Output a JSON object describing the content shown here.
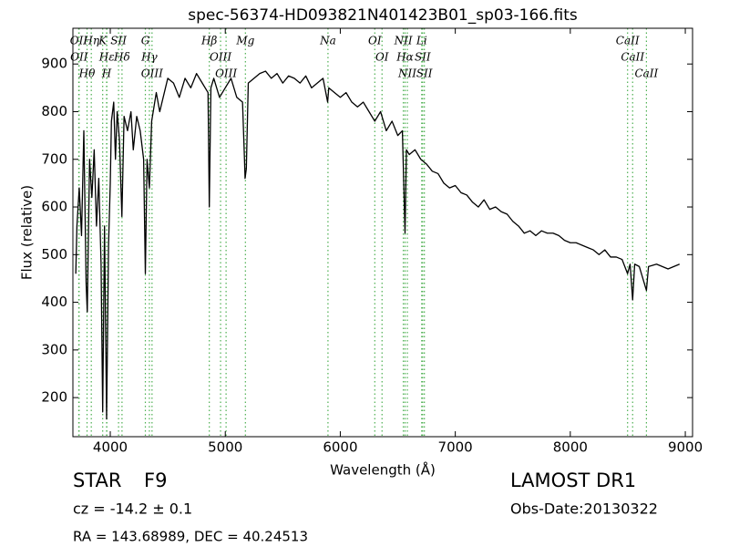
{
  "chart_data": {
    "type": "line",
    "title": "spec-56374-HD093821N401423B01_sp03-166.fits",
    "x_label": "Wavelength (Å)",
    "y_label": "Flux (relative)",
    "color": "#000000",
    "xlim": [
      3675,
      9063
    ],
    "ylim": [
      118,
      975
    ],
    "xticks": [
      4000,
      5000,
      6000,
      7000,
      8000,
      9000
    ],
    "yticks": [
      200,
      300,
      400,
      500,
      600,
      700,
      800,
      900
    ],
    "line_color": "#4caf50",
    "x": [
      3700,
      3710,
      3730,
      3750,
      3770,
      3790,
      3800,
      3820,
      3840,
      3860,
      3880,
      3900,
      3920,
      3934,
      3950,
      3968,
      3985,
      4000,
      4010,
      4030,
      4045,
      4060,
      4080,
      4101,
      4120,
      4150,
      4180,
      4200,
      4230,
      4260,
      4290,
      4305,
      4320,
      4340,
      4360,
      4400,
      4430,
      4470,
      4500,
      4550,
      4600,
      4650,
      4700,
      4750,
      4800,
      4850,
      4861,
      4875,
      4900,
      4950,
      5000,
      5050,
      5100,
      5150,
      5167,
      5172,
      5183,
      5200,
      5250,
      5300,
      5350,
      5400,
      5450,
      5500,
      5550,
      5600,
      5650,
      5700,
      5750,
      5800,
      5850,
      5890,
      5900,
      5950,
      6000,
      6050,
      6100,
      6150,
      6200,
      6250,
      6300,
      6350,
      6400,
      6450,
      6500,
      6540,
      6563,
      6575,
      6600,
      6650,
      6700,
      6750,
      6800,
      6850,
      6900,
      6950,
      7000,
      7050,
      7100,
      7150,
      7200,
      7250,
      7300,
      7350,
      7400,
      7450,
      7500,
      7550,
      7600,
      7650,
      7700,
      7750,
      7800,
      7850,
      7900,
      7950,
      8000,
      8050,
      8100,
      8150,
      8200,
      8250,
      8300,
      8350,
      8400,
      8450,
      8498,
      8520,
      8542,
      8560,
      8600,
      8662,
      8680,
      8750,
      8800,
      8850,
      8900,
      8950
    ],
    "values": [
      460,
      560,
      640,
      540,
      760,
      440,
      380,
      700,
      620,
      720,
      560,
      660,
      480,
      170,
      560,
      155,
      520,
      650,
      780,
      820,
      700,
      800,
      740,
      580,
      790,
      760,
      800,
      720,
      790,
      760,
      700,
      460,
      700,
      640,
      780,
      840,
      800,
      840,
      870,
      860,
      830,
      870,
      850,
      880,
      860,
      840,
      600,
      850,
      870,
      830,
      850,
      870,
      830,
      820,
      700,
      660,
      680,
      860,
      870,
      880,
      885,
      870,
      880,
      860,
      875,
      870,
      860,
      875,
      850,
      860,
      870,
      820,
      850,
      840,
      830,
      840,
      820,
      810,
      820,
      800,
      780,
      800,
      760,
      780,
      750,
      760,
      545,
      720,
      710,
      720,
      700,
      690,
      675,
      670,
      650,
      640,
      645,
      630,
      625,
      610,
      600,
      615,
      595,
      600,
      590,
      585,
      570,
      560,
      545,
      550,
      540,
      550,
      545,
      545,
      540,
      530,
      525,
      525,
      520,
      515,
      510,
      500,
      510,
      495,
      495,
      490,
      460,
      480,
      405,
      480,
      475,
      425,
      475,
      480,
      475,
      470,
      475,
      480
    ],
    "spectral_lines": [
      {
        "x": 3726,
        "label": "OII"
      },
      {
        "x": 3729,
        "label": "OII"
      },
      {
        "x": 3798,
        "label": "Hθ"
      },
      {
        "x": 3835,
        "label": "Hη"
      },
      {
        "x": 3934,
        "label": "K"
      },
      {
        "x": 3970,
        "label": "Hε"
      },
      {
        "x": 3968,
        "label": "H"
      },
      {
        "x": 4072,
        "label": "SII"
      },
      {
        "x": 4102,
        "label": "Hδ"
      },
      {
        "x": 4305,
        "label": "G"
      },
      {
        "x": 4340,
        "label": "Hγ"
      },
      {
        "x": 4363,
        "label": "OIII"
      },
      {
        "x": 4861,
        "label": "Hβ"
      },
      {
        "x": 4959,
        "label": "OIII"
      },
      {
        "x": 5007,
        "label": "OIII"
      },
      {
        "x": 5175,
        "label": "Mg"
      },
      {
        "x": 5893,
        "label": "Na"
      },
      {
        "x": 6300,
        "label": "OI"
      },
      {
        "x": 6363,
        "label": "OI"
      },
      {
        "x": 6548,
        "label": "NII"
      },
      {
        "x": 6563,
        "label": "Hα"
      },
      {
        "x": 6583,
        "label": "NII"
      },
      {
        "x": 6708,
        "label": "Li"
      },
      {
        "x": 6716,
        "label": "SII"
      },
      {
        "x": 6731,
        "label": "SII"
      },
      {
        "x": 8498,
        "label": "CaII"
      },
      {
        "x": 8542,
        "label": "CaII"
      },
      {
        "x": 8662,
        "label": "CaII"
      }
    ]
  },
  "info": {
    "object_class": "STAR",
    "subclass": "F9",
    "redshift": "cz = -14.2 ± 0.1",
    "coordinates": "RA = 143.68989, DEC = 40.24513",
    "survey": "LAMOST DR1",
    "obs_date": "Obs-Date:20130322"
  }
}
